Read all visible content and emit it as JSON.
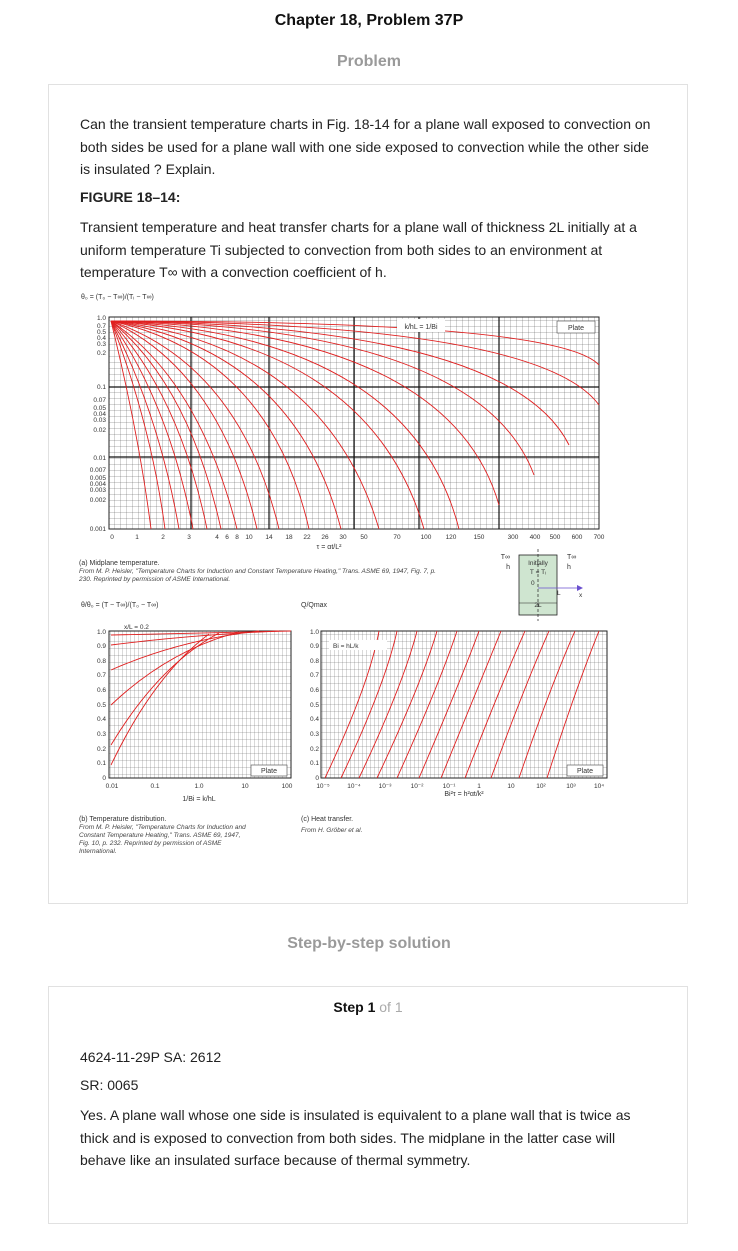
{
  "header": {
    "title": "Chapter 18, Problem 37P"
  },
  "problem": {
    "heading": "Problem",
    "question": "Can the transient temperature charts in Fig. 18-14 for a plane wall exposed to convection on both sides be used for a plane wall with one side exposed to convection while the other side is insulated ? Explain.",
    "figure_label": "FIGURE 18–14:",
    "figure_description": "Transient temperature and heat transfer charts for a plane wall of thickness 2L initially at a uniform temperature Ti subjected to convection from both sides to an environment at temperature T∞ with a convection coefficient of h.",
    "figure": {
      "chart_a": {
        "y_label": "θ₀ = (T₀ − T∞)/(Tᵢ − T∞)",
        "ratio_label": "k/hL = 1/Bi",
        "tag": "Plate",
        "y_ticks": [
          "1.0",
          "0.7",
          "0.5",
          "0.4",
          "0.3",
          "0.2",
          "0.1",
          "0.07",
          "0.05",
          "0.04",
          "0.03",
          "0.02",
          "0.01",
          "0.007",
          "0.005",
          "0.004",
          "0.003",
          "0.002",
          "0.001"
        ],
        "x_ticks": [
          "0",
          "1",
          "2",
          "3",
          "4",
          "6",
          "8",
          "10",
          "14",
          "18",
          "22",
          "26",
          "30",
          "50",
          "70",
          "100",
          "120",
          "150",
          "300",
          "400",
          "500",
          "600",
          "700"
        ],
        "x_label": "τ = αt/L²",
        "caption": "(a) Midplane temperature.",
        "credit": "From M. P. Heisler, \"Temperature Charts for Induction and Constant Temperature Heating,\" Trans. ASME 69, 1947, Fig. 7, p. 230. Reprinted by permission of ASME International."
      },
      "diagram": {
        "t_inf": "T∞",
        "h": "h",
        "initially": "Initially",
        "ti": "T = Tᵢ",
        "zero": "0",
        "L": "L",
        "x": "x",
        "two_L": "2L"
      },
      "chart_b": {
        "y_label": "θ/θ₀ = (T − T∞)/(T₀ − T∞)",
        "x_over_L": "x/L = 0.2",
        "curve_labels": [
          "0.4",
          "0.6",
          "0.8",
          "0.9",
          "1.0"
        ],
        "y_ticks": [
          "1.0",
          "0.9",
          "0.8",
          "0.7",
          "0.6",
          "0.5",
          "0.4",
          "0.3",
          "0.2",
          "0.1",
          "0"
        ],
        "x_ticks": [
          "0.01",
          "0.1",
          "1.0",
          "10",
          "100"
        ],
        "x_label": "1/Bi = k/hL",
        "tag": "Plate",
        "caption": "(b) Temperature distribution.",
        "credit": "From M. P. Heisler, \"Temperature Charts for Induction and Constant Temperature Heating,\" Trans. ASME 69, 1947, Fig. 10, p. 232. Reprinted by permission of ASME International."
      },
      "chart_c": {
        "y_label": "Q/Qmax",
        "bi_label": "Bi = hL/k",
        "y_ticks": [
          "1.0",
          "0.9",
          "0.8",
          "0.7",
          "0.6",
          "0.5",
          "0.4",
          "0.3",
          "0.2",
          "0.1",
          "0"
        ],
        "x_ticks": [
          "10⁻⁵",
          "10⁻⁴",
          "10⁻³",
          "10⁻²",
          "10⁻¹",
          "1",
          "10",
          "10²",
          "10³",
          "10⁴"
        ],
        "x_label": "Bi²τ = h²αt/k²",
        "tag": "Plate",
        "caption": "(c) Heat transfer.",
        "credit": "From H. Gröber et al."
      }
    }
  },
  "solution": {
    "heading": "Step-by-step solution",
    "step_label": "Step 1",
    "step_of": "of 1",
    "line1": "4624-11-29P SA: 2612",
    "line2": "SR: 0065",
    "answer": "Yes. A plane wall whose one side is insulated is equivalent to a plane wall that is twice as thick and is exposed to convection from both sides. The midplane in the latter case will behave like an insulated surface because of thermal symmetry."
  }
}
